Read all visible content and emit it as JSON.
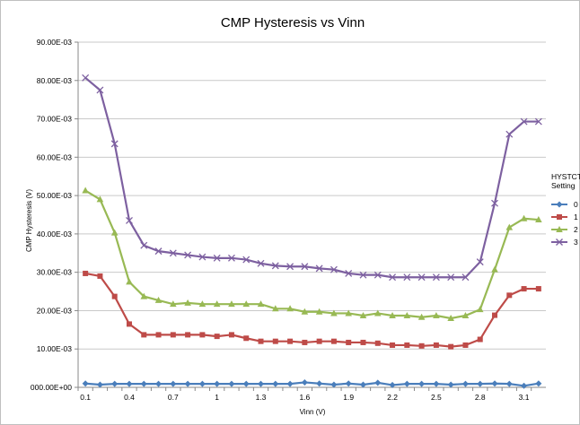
{
  "chart_data": {
    "type": "line",
    "title": "CMP Hysteresis vs Vinn",
    "xlabel": "Vinn (V)",
    "ylabel": "CMP Hysteresis (V)",
    "x": [
      0.1,
      0.2,
      0.3,
      0.4,
      0.5,
      0.6,
      0.7,
      0.8,
      0.9,
      1.0,
      1.1,
      1.2,
      1.3,
      1.4,
      1.5,
      1.6,
      1.7,
      1.8,
      1.9,
      2.0,
      2.1,
      2.2,
      2.3,
      2.4,
      2.5,
      2.6,
      2.7,
      2.8,
      2.9,
      3.0,
      3.1,
      3.2
    ],
    "x_tick_labels": [
      "0.1",
      "0.4",
      "0.7",
      "1",
      "1.3",
      "1.6",
      "1.9",
      "2.2",
      "2.5",
      "2.8",
      "3.1"
    ],
    "x_tick_values": [
      0.1,
      0.4,
      0.7,
      1.0,
      1.3,
      1.6,
      1.9,
      2.2,
      2.5,
      2.8,
      3.1
    ],
    "y_tick_labels": [
      "000.00E+00",
      "10.00E-03",
      "20.00E-03",
      "30.00E-03",
      "40.00E-03",
      "50.00E-03",
      "60.00E-03",
      "70.00E-03",
      "80.00E-03",
      "90.00E-03"
    ],
    "ylim": [
      0,
      0.09
    ],
    "grid": true,
    "legend_position": "right",
    "legend_title": [
      "HYSTCTR",
      "Setting"
    ],
    "series": [
      {
        "name": "0",
        "color": "#4a7ebb",
        "marker": "diamond",
        "values": [
          0.001,
          0.0007,
          0.0009,
          0.0009,
          0.0009,
          0.0009,
          0.0009,
          0.0009,
          0.0009,
          0.0009,
          0.0009,
          0.0009,
          0.0009,
          0.0009,
          0.0009,
          0.0013,
          0.001,
          0.0007,
          0.001,
          0.0007,
          0.0012,
          0.0006,
          0.0009,
          0.0009,
          0.0009,
          0.0007,
          0.0009,
          0.0009,
          0.001,
          0.0009,
          0.0004,
          0.001
        ]
      },
      {
        "name": "1",
        "color": "#be4b48",
        "marker": "square",
        "values": [
          0.0297,
          0.029,
          0.0237,
          0.0165,
          0.0137,
          0.0137,
          0.0137,
          0.0137,
          0.0137,
          0.0133,
          0.0137,
          0.0128,
          0.012,
          0.012,
          0.012,
          0.0117,
          0.012,
          0.012,
          0.0117,
          0.0117,
          0.0115,
          0.011,
          0.011,
          0.0108,
          0.011,
          0.0106,
          0.011,
          0.0125,
          0.0188,
          0.024,
          0.0257,
          0.0257
        ]
      },
      {
        "name": "2",
        "color": "#98b954",
        "marker": "triangle",
        "values": [
          0.0513,
          0.049,
          0.0403,
          0.0275,
          0.0237,
          0.0227,
          0.0217,
          0.022,
          0.0217,
          0.0217,
          0.0217,
          0.0217,
          0.0217,
          0.0205,
          0.0205,
          0.0197,
          0.0197,
          0.0193,
          0.0193,
          0.0187,
          0.0193,
          0.0187,
          0.0187,
          0.0183,
          0.0187,
          0.018,
          0.0187,
          0.0203,
          0.0307,
          0.0417,
          0.044,
          0.0437
        ]
      },
      {
        "name": "3",
        "color": "#7d60a0",
        "marker": "x",
        "values": [
          0.0807,
          0.0775,
          0.0635,
          0.0435,
          0.037,
          0.0355,
          0.035,
          0.0345,
          0.034,
          0.0337,
          0.0337,
          0.0333,
          0.0323,
          0.0317,
          0.0315,
          0.0315,
          0.031,
          0.0307,
          0.0297,
          0.0293,
          0.0293,
          0.0287,
          0.0287,
          0.0287,
          0.0287,
          0.0287,
          0.0287,
          0.0327,
          0.048,
          0.066,
          0.0693,
          0.0693
        ]
      }
    ]
  }
}
